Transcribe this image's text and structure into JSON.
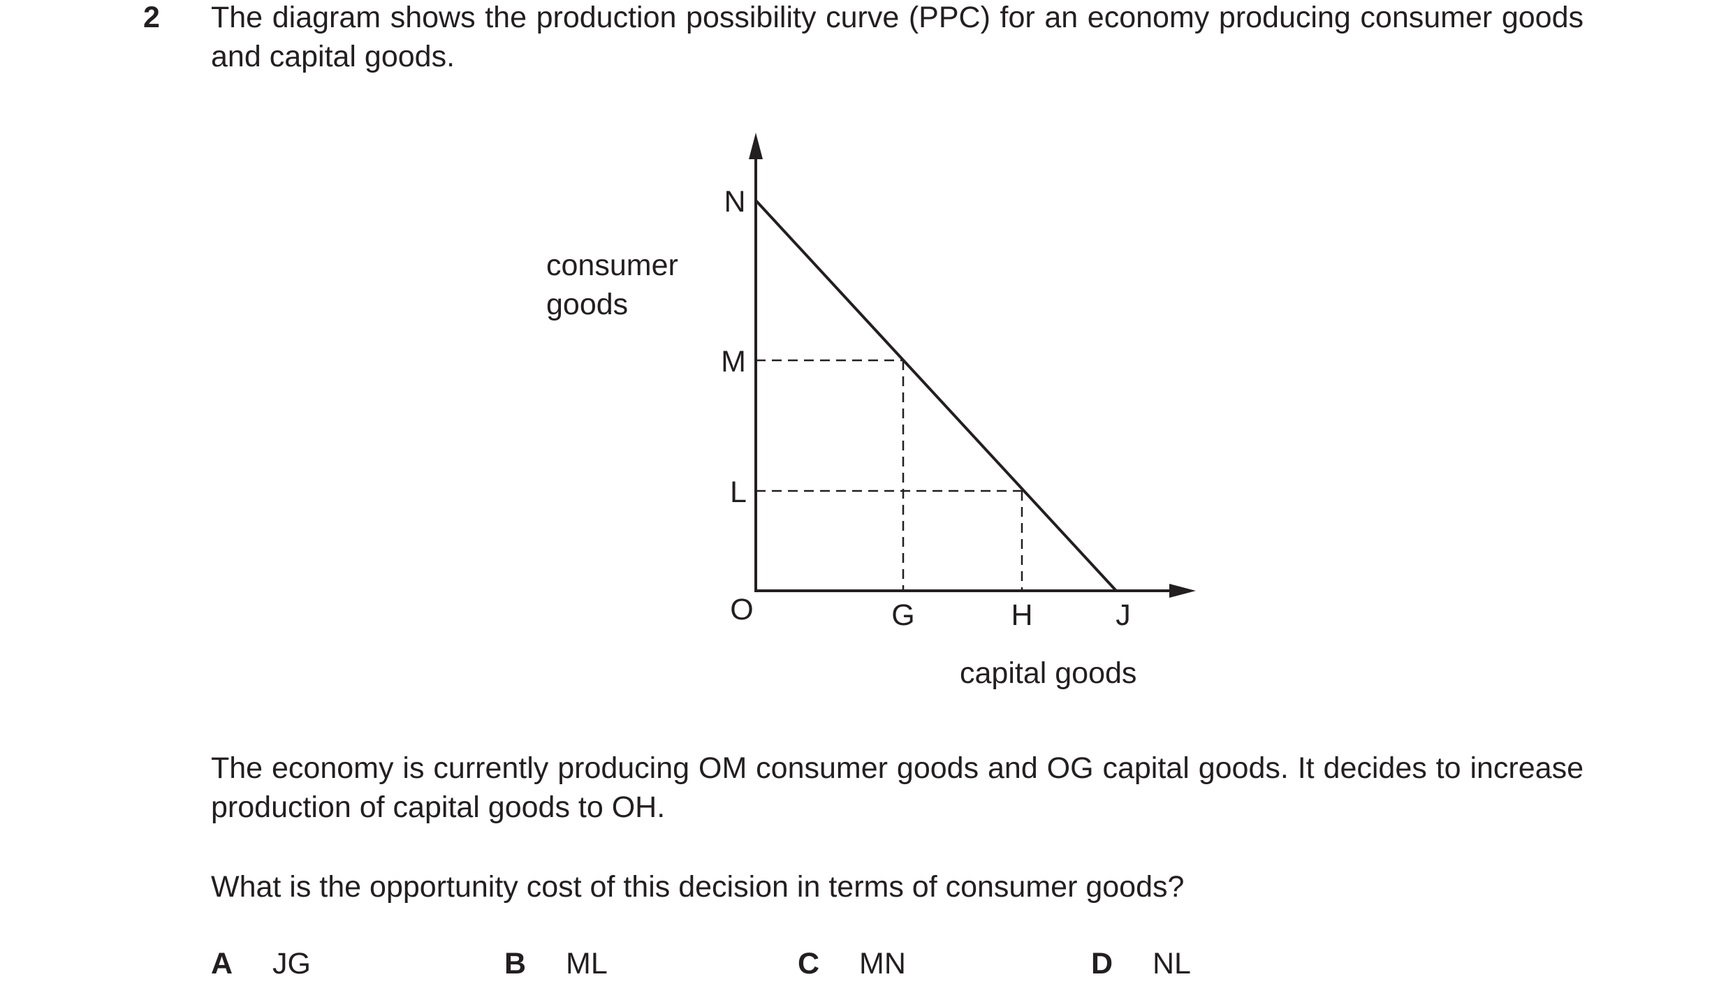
{
  "question": {
    "number": "2",
    "intro": "The diagram shows the production possibility curve (PPC) for an economy producing consumer goods and capital goods.",
    "context": "The economy is currently producing OM consumer goods and OG capital goods. It decides to increase production of capital goods to OH.",
    "prompt": "What is the opportunity cost of this decision in terms of consumer goods?"
  },
  "diagram": {
    "y_axis_label_line1": "consumer",
    "y_axis_label_line2": "goods",
    "x_axis_label": "capital goods",
    "origin_label": "O",
    "y_points": {
      "N": "N",
      "M": "M",
      "L": "L"
    },
    "x_points": {
      "G": "G",
      "H": "H",
      "J": "J"
    }
  },
  "options": [
    {
      "letter": "A",
      "text": "JG"
    },
    {
      "letter": "B",
      "text": "ML"
    },
    {
      "letter": "C",
      "text": "MN"
    },
    {
      "letter": "D",
      "text": "NL"
    }
  ]
}
